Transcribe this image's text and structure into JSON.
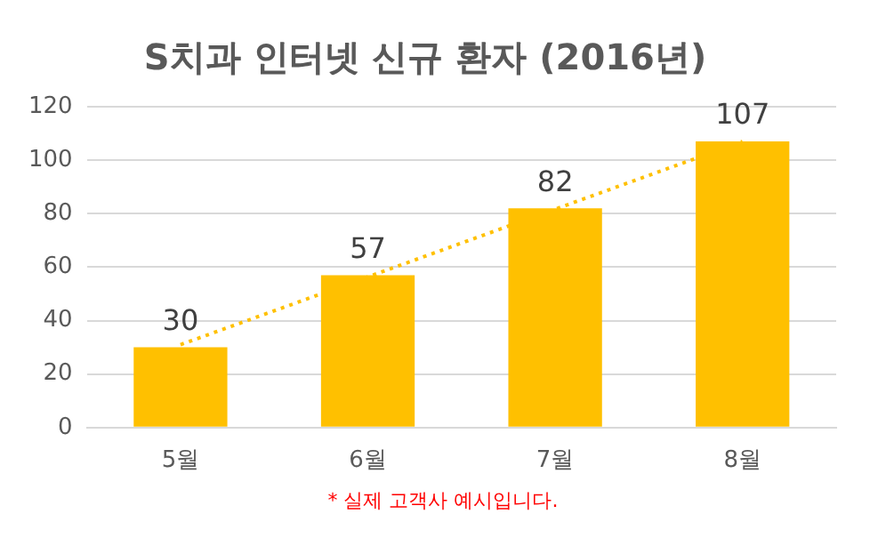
{
  "chart_data": {
    "type": "bar",
    "title": "S치과 인터넷 신규 환자 (2016년)",
    "categories": [
      "5월",
      "6월",
      "7월",
      "8월"
    ],
    "series": [
      {
        "color": "#ffc000",
        "values": [
          30,
          57,
          82,
          107
        ],
        "value_labels": [
          "30",
          "57",
          "82",
          "107"
        ]
      },
      {
        "type": "line",
        "color": "#ffc000",
        "x": [
          "5월",
          "8월"
        ],
        "values": [
          31,
          107
        ],
        "line_style": "dotted",
        "marker": "none"
      }
    ],
    "ylim": [
      0,
      120
    ],
    "yticks": [
      0,
      20,
      40,
      60,
      80,
      100,
      120
    ],
    "grid": "y",
    "legend": false,
    "annotations": [
      "* 실제 고객사 예시입니다."
    ]
  }
}
